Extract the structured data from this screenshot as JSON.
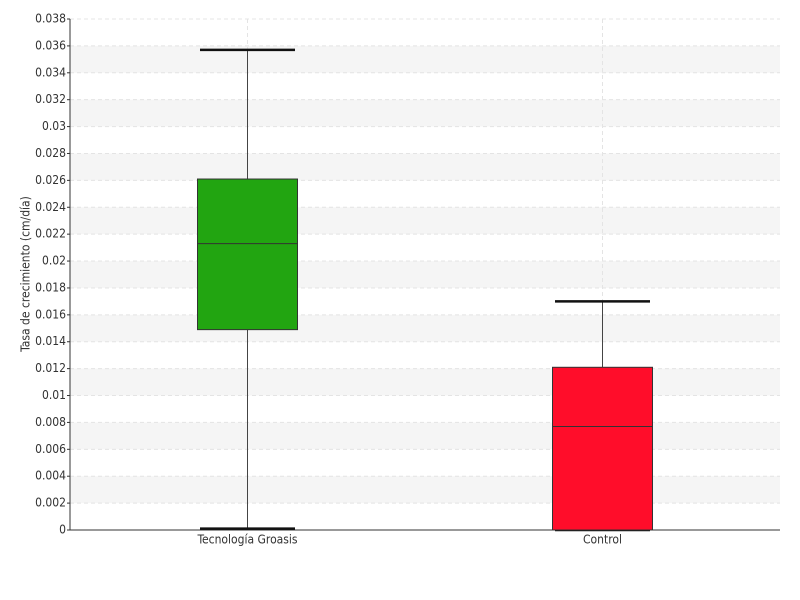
{
  "chart_data": {
    "type": "box",
    "y_label": "Tasa de crecimiento (cm/día)",
    "categories": [
      "Tecnología Groasis",
      "Control"
    ],
    "boxes": [
      {
        "min": 0.0001,
        "q1": 0.0149,
        "median": 0.0213,
        "q3": 0.0261,
        "max": 0.0357,
        "color": "#22a511"
      },
      {
        "min": 0,
        "q1": 0,
        "median": 0.0077,
        "q3": 0.0121,
        "max": 0.017,
        "color": "#ff0d2a"
      }
    ],
    "ylim": [
      0,
      0.038
    ],
    "yticks": [
      0,
      0.002,
      0.004,
      0.006,
      0.008,
      0.01,
      0.012,
      0.014,
      0.016,
      0.018,
      0.02,
      0.022,
      0.024,
      0.026,
      0.028,
      0.03,
      0.032,
      0.034,
      0.036,
      0.038
    ],
    "grid": true
  }
}
